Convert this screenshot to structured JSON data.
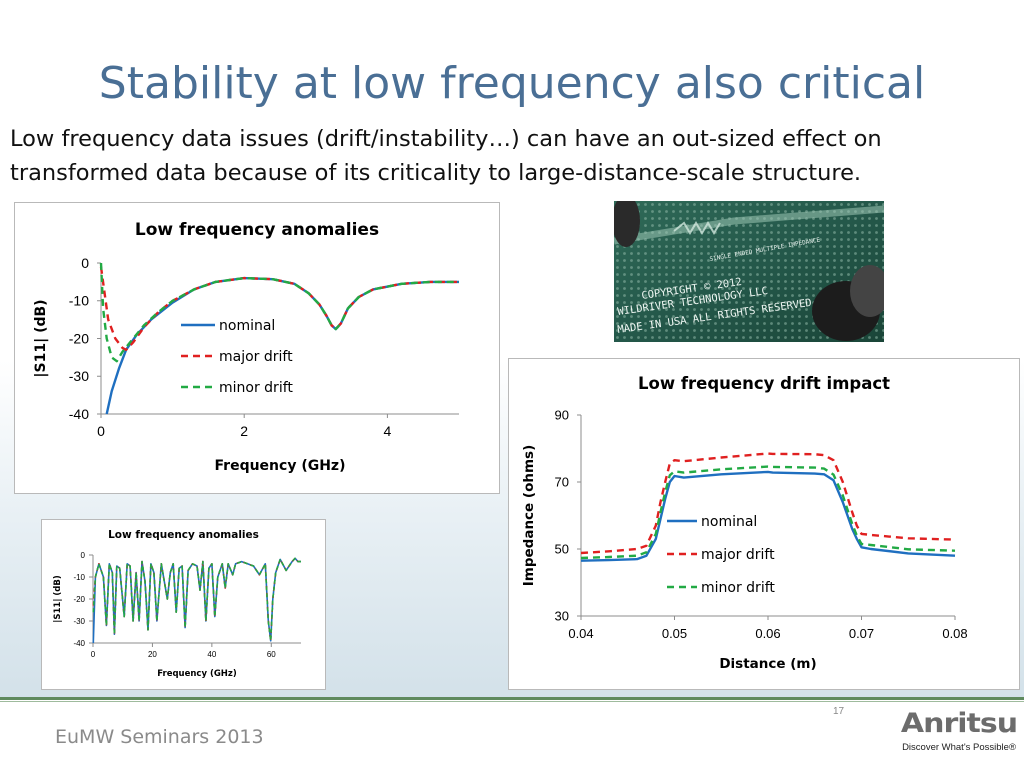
{
  "slide": {
    "title": "Stability at low frequency also critical",
    "body": "Low frequency data issues (drift/instability…) can have an out-sized effect on transformed data because of its criticality to large-distance-scale structure."
  },
  "photo": {
    "lines": [
      "COPYRIGHT © 2012",
      "WILDRIVER TECHNOLOGY LLC",
      "MADE IN USA  ALL RIGHTS RESERVED"
    ],
    "trace_label": "SINGLE ENDED MULTIPLE IMPEDANCE"
  },
  "footer": {
    "left": "EuMW Seminars 2013",
    "page_number": "17",
    "logo": "Anritsu",
    "tagline": "Discover What's Possible®"
  },
  "colors": {
    "nominal": "#1f6fc0",
    "major_drift": "#e02020",
    "minor_drift": "#22aa44",
    "title": "#4a6f95"
  },
  "chart_data": [
    {
      "id": "chart1",
      "type": "line",
      "title": "Low frequency anomalies",
      "xlabel": "Frequency (GHz)",
      "ylabel": "|S11| (dB)",
      "xlim": [
        0,
        5
      ],
      "ylim": [
        -40,
        0
      ],
      "xticks": [
        0,
        2,
        4
      ],
      "yticks": [
        0,
        -10,
        -20,
        -30,
        -40
      ],
      "grid": false,
      "legend": "center-left",
      "series": [
        {
          "name": "nominal",
          "style": "solid",
          "color": "#1f6fc0",
          "x": [
            0.08,
            0.15,
            0.25,
            0.35,
            0.5,
            0.7,
            1.0,
            1.3,
            1.6,
            2.0,
            2.4,
            2.7,
            2.9,
            3.05,
            3.15,
            3.22,
            3.28,
            3.35,
            3.45,
            3.6,
            3.8,
            4.2,
            4.6,
            5.0
          ],
          "y": [
            -40,
            -34,
            -28,
            -23,
            -19,
            -15,
            -10.5,
            -7,
            -5,
            -4,
            -4.3,
            -5.5,
            -8,
            -11,
            -14,
            -16.5,
            -17.5,
            -16,
            -12,
            -9,
            -7,
            -5.5,
            -5,
            -5
          ]
        },
        {
          "name": "major drift",
          "style": "dash",
          "color": "#e02020",
          "x": [
            0.0,
            0.05,
            0.1,
            0.2,
            0.3,
            0.35,
            0.45,
            0.6,
            0.8,
            1.0,
            1.3,
            1.6,
            2.0,
            2.4,
            2.7,
            2.9,
            3.05,
            3.15,
            3.22,
            3.28,
            3.35,
            3.45,
            3.6,
            3.8,
            4.2,
            4.6,
            5.0
          ],
          "y": [
            -1,
            -8,
            -15,
            -20,
            -22.5,
            -23,
            -21,
            -17,
            -13,
            -10,
            -7,
            -5,
            -4,
            -4.3,
            -5.5,
            -8,
            -11,
            -14,
            -16.5,
            -17.5,
            -16,
            -12,
            -9,
            -7,
            -5.5,
            -5,
            -5
          ]
        },
        {
          "name": "minor drift",
          "style": "dash",
          "color": "#22aa44",
          "x": [
            0.0,
            0.03,
            0.08,
            0.15,
            0.22,
            0.3,
            0.45,
            0.6,
            0.8,
            1.0,
            1.3,
            1.6,
            2.0,
            2.4,
            2.7,
            2.9,
            3.05,
            3.15,
            3.22,
            3.28,
            3.35,
            3.45,
            3.6,
            3.8,
            4.2,
            4.6,
            5.0
          ],
          "y": [
            0,
            -12,
            -20,
            -25,
            -26,
            -23.5,
            -20,
            -16.5,
            -13,
            -10,
            -7,
            -5,
            -4,
            -4.3,
            -5.5,
            -8,
            -11,
            -14,
            -16.5,
            -17.5,
            -16,
            -12,
            -9,
            -7,
            -5.5,
            -5,
            -5
          ]
        }
      ]
    },
    {
      "id": "chart2",
      "type": "line",
      "title": "Low frequency drift impact",
      "xlabel": "Distance (m)",
      "ylabel": "Impedance (ohms)",
      "xlim": [
        0.04,
        0.08
      ],
      "ylim": [
        30,
        90
      ],
      "xticks": [
        0.04,
        0.05,
        0.06,
        0.07,
        0.08
      ],
      "yticks": [
        30,
        50,
        70,
        90
      ],
      "grid": false,
      "legend": "center-left",
      "series": [
        {
          "name": "nominal",
          "style": "solid",
          "color": "#1f6fc0",
          "x": [
            0.04,
            0.043,
            0.046,
            0.047,
            0.048,
            0.0485,
            0.049,
            0.0495,
            0.05,
            0.051,
            0.055,
            0.06,
            0.0605,
            0.065,
            0.066,
            0.067,
            0.068,
            0.069,
            0.0695,
            0.07,
            0.071,
            0.075,
            0.08
          ],
          "y": [
            46.5,
            46.7,
            47,
            48,
            53,
            59,
            65,
            70,
            71.8,
            71.3,
            72.3,
            73,
            72.8,
            72.5,
            72.3,
            70.5,
            64,
            56,
            53,
            50.5,
            50,
            48.7,
            48
          ]
        },
        {
          "name": "major drift",
          "style": "dash",
          "color": "#e02020",
          "x": [
            0.04,
            0.043,
            0.046,
            0.047,
            0.048,
            0.0485,
            0.049,
            0.0495,
            0.05,
            0.051,
            0.055,
            0.06,
            0.0605,
            0.065,
            0.066,
            0.067,
            0.068,
            0.069,
            0.0695,
            0.07,
            0.071,
            0.075,
            0.08
          ],
          "y": [
            48.8,
            49.3,
            50,
            51,
            57,
            64,
            70,
            75.5,
            76.5,
            76.2,
            77.3,
            78.5,
            78.4,
            78.3,
            78,
            76.5,
            70,
            61,
            57,
            54.5,
            54.2,
            53.2,
            52.8
          ]
        },
        {
          "name": "minor drift",
          "style": "dash",
          "color": "#22aa44",
          "x": [
            0.04,
            0.043,
            0.046,
            0.047,
            0.048,
            0.0485,
            0.049,
            0.0495,
            0.05,
            0.051,
            0.055,
            0.06,
            0.0605,
            0.065,
            0.066,
            0.067,
            0.068,
            0.069,
            0.0695,
            0.07,
            0.071,
            0.075,
            0.08
          ],
          "y": [
            47.3,
            47.6,
            48,
            49,
            54.5,
            61,
            67,
            72,
            73.2,
            72.8,
            73.8,
            74.6,
            74.5,
            74.3,
            74,
            72.2,
            66,
            57.5,
            54,
            51.5,
            51.2,
            49.9,
            49.5
          ]
        }
      ]
    },
    {
      "id": "chart3",
      "type": "line",
      "title": "Low frequency anomalies",
      "xlabel": "Frequency (GHz)",
      "ylabel": "|S11| (dB)",
      "xlim": [
        0,
        70
      ],
      "ylim": [
        -40,
        0
      ],
      "xticks": [
        0,
        20,
        40,
        60
      ],
      "yticks": [
        0,
        -10,
        -20,
        -30,
        -40
      ],
      "grid": false,
      "legend": "none",
      "series": [
        {
          "name": "nominal",
          "style": "solid",
          "color": "#1f6fc0",
          "x": [
            0.1,
            0.8,
            2,
            3.5,
            4.5,
            5.5,
            6.5,
            7.2,
            8,
            9,
            10.5,
            11.5,
            12.5,
            13.5,
            14.5,
            15.5,
            16.5,
            17.5,
            18.5,
            19.5,
            20.5,
            21.5,
            23,
            24,
            25,
            26,
            27,
            28,
            29,
            30,
            31,
            32,
            33.5,
            35,
            36,
            37,
            38,
            39,
            40,
            41,
            42,
            43.5,
            44.5,
            45.5,
            47,
            48,
            50,
            52,
            54,
            56,
            58,
            59,
            59.8,
            60.5,
            61.5,
            63,
            65,
            67,
            68,
            69,
            70
          ],
          "y": [
            -40,
            -10,
            -4,
            -10,
            -32,
            -4,
            -8,
            -36,
            -5,
            -6,
            -28,
            -4,
            -5,
            -30,
            -8,
            -30,
            -3,
            -12,
            -34,
            -4,
            -8,
            -30,
            -4,
            -12,
            -20,
            -8,
            -4,
            -26,
            -6,
            -5,
            -33,
            -7,
            -4,
            -5,
            -16,
            -3,
            -30,
            -6,
            -4,
            -28,
            -10,
            -4,
            -15,
            -4,
            -9,
            -4,
            -3,
            -4,
            -5,
            -9,
            -4,
            -30,
            -39,
            -20,
            -8,
            -2,
            -7,
            -3,
            -1.5,
            -3,
            -3
          ]
        },
        {
          "name": "major drift",
          "style": "dash",
          "color": "#e02020",
          "x": [
            0.1,
            0.8,
            2,
            3.5,
            4.5,
            5.5,
            6.5,
            7.2,
            8,
            9,
            10.5,
            11.5,
            12.5,
            13.5,
            14.5,
            15.5,
            16.5,
            17.5,
            18.5,
            19.5,
            20.5,
            21.5,
            23,
            24,
            25,
            26,
            27,
            28,
            29,
            30,
            31,
            32,
            33.5,
            35,
            36,
            37,
            38,
            39,
            40,
            41,
            42,
            43.5,
            44.5,
            45.5,
            47,
            48,
            50,
            52,
            54,
            56,
            58,
            59,
            59.8,
            60.5,
            61.5,
            63,
            65,
            67,
            68,
            69,
            70
          ],
          "y": [
            -23,
            -10,
            -4,
            -10,
            -32,
            -4,
            -8,
            -36,
            -5,
            -6,
            -28,
            -4,
            -5,
            -30,
            -8,
            -30,
            -3,
            -12,
            -34,
            -4,
            -8,
            -30,
            -4,
            -12,
            -20,
            -8,
            -4,
            -26,
            -6,
            -5,
            -33,
            -7,
            -4,
            -5,
            -16,
            -3,
            -30,
            -6,
            -4,
            -28,
            -10,
            -4,
            -15,
            -4,
            -9,
            -4,
            -3,
            -4,
            -5,
            -9,
            -4,
            -30,
            -39,
            -20,
            -8,
            -2,
            -7,
            -3,
            -1.5,
            -3,
            -3
          ]
        },
        {
          "name": "minor drift",
          "style": "dash",
          "color": "#22aa44",
          "x": [
            0.1,
            0.8,
            2,
            3.5,
            4.5,
            5.5,
            6.5,
            7.2,
            8,
            9,
            10.5,
            11.5,
            12.5,
            13.5,
            14.5,
            15.5,
            16.5,
            17.5,
            18.5,
            19.5,
            20.5,
            21.5,
            23,
            24,
            25,
            26,
            27,
            28,
            29,
            30,
            31,
            32,
            33.5,
            35,
            36,
            37,
            38,
            39,
            40,
            41,
            42,
            43.5,
            44.5,
            45.5,
            47,
            48,
            50,
            52,
            54,
            56,
            58,
            59,
            59.8,
            60.5,
            61.5,
            63,
            65,
            67,
            68,
            69,
            70
          ],
          "y": [
            -26,
            -10,
            -4,
            -10,
            -32,
            -4,
            -8,
            -36,
            -5,
            -6,
            -28,
            -4,
            -5,
            -30,
            -8,
            -30,
            -3,
            -12,
            -34,
            -4,
            -8,
            -30,
            -4,
            -12,
            -20,
            -8,
            -4,
            -26,
            -6,
            -5,
            -33,
            -7,
            -4,
            -5,
            -16,
            -3,
            -30,
            -6,
            -4,
            -28,
            -10,
            -4,
            -15,
            -4,
            -9,
            -4,
            -3,
            -4,
            -5,
            -9,
            -4,
            -30,
            -39,
            -20,
            -8,
            -2,
            -7,
            -3,
            -1.5,
            -3,
            -3
          ]
        }
      ]
    }
  ]
}
